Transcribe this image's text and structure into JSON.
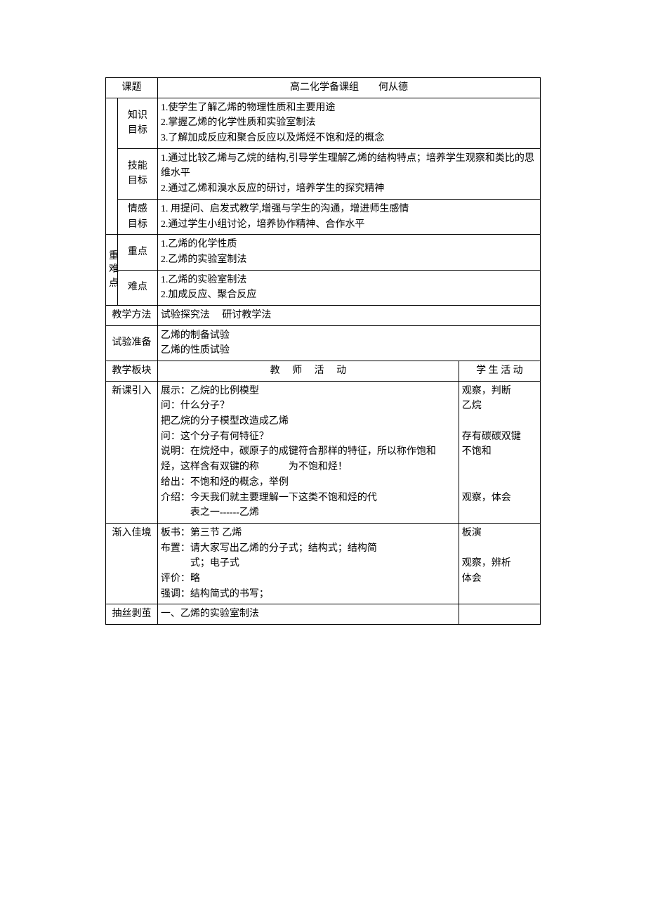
{
  "colors": {
    "border": "#000000",
    "text": "#000000",
    "bg": "#ffffff"
  },
  "font": {
    "family": "SimSun",
    "size_pt": 10.5,
    "line_height": 1.55
  },
  "header": {
    "课题_label": "课题",
    "课题_value": "高二化学备课组　　何从德"
  },
  "goals_group_label": "",
  "goals": {
    "知识目标": {
      "label": "知识\n目标",
      "items": [
        "1.使学生了解乙烯的物理性质和主要用途",
        "2.掌握乙烯的化学性质和实验室制法",
        "3.了解加成反应和聚合反应以及烯烃不饱和烃的概念"
      ]
    },
    "技能目标": {
      "label": "技能\n目标",
      "items": [
        "1.通过比较乙烯与乙烷的结构,引导学生理解乙烯的结构特点；培养学生观察和类比的思维水平",
        "2.通过乙烯和溴水反应的研讨，培养学生的探究精神"
      ]
    },
    "情感目标": {
      "label": "情感\n目标",
      "items": [
        "1.  用提问、启发式教学,增强与学生的沟通，增进师生感情",
        "2.通过学生小组讨论，培养协作精神、合作水平"
      ]
    }
  },
  "keypoints_group_label": "重\n难\n点",
  "重点": {
    "label": "重点",
    "items": [
      "1.乙烯的化学性质",
      "2.乙烯的实验室制法"
    ]
  },
  "难点": {
    "label": "难点",
    "items": [
      "1.乙烯的实验室制法",
      "2.加成反应、聚合反应"
    ]
  },
  "教学方法": {
    "label": "教学方法",
    "value": "试验探究法　 研讨教学法"
  },
  "试验准备": {
    "label": "试验准备",
    "value": "乙烯的制备试验\n乙烯的性质试验"
  },
  "columns": {
    "板块": "教学板块",
    "教师": "教　 师　 活　 动",
    "学生": "学 生 活 动"
  },
  "rows": [
    {
      "板块": "新课引入",
      "教师": "展示：乙烷的比例模型\n问：什么分子？\n把乙烷的分子模型改造成乙烯\n问：这个分子有何特征？\n说明：在烷烃中，碳原子的成键符合那样的特征，所以称作饱和烃，这样含有双键的称　　　为不饱和烃！\n给出：不饱和烃的概念，举例\n介绍：今天我们就主要理解一下这类不饱和烃的代\n　　　表之一------乙烯",
      "学生": "观察，判断\n乙烷\n\n存有碳碳双键\n不饱和\n\n\n观察，体会"
    },
    {
      "板块": "渐入佳境",
      "教师": "板书：第三节 乙烯\n布置：请大家写出乙烯的分子式；结构式；结构简\n　　　式；电子式\n评价：略\n强调：结构简式的书写；",
      "学生": "板演\n\n观察，辨析\n体会"
    },
    {
      "板块": "抽丝剥茧",
      "教师": "一、乙烯的实验室制法",
      "学生": ""
    }
  ]
}
